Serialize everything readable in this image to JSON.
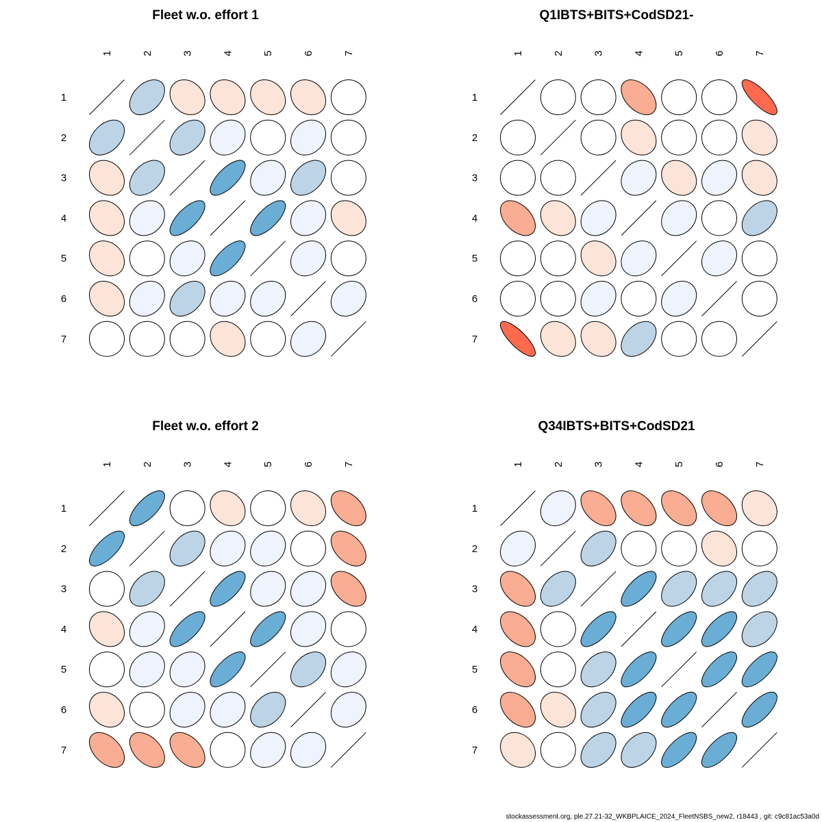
{
  "footer": "stockassessment.org, ple.27.21-32_WKBPLAICE_2024_FleetNSBS_new2, r18443 , git: c9c81ac53a0d",
  "palette": {
    "-1": "#ff6a4f",
    "-0.8": "#ff6a4f",
    "-0.6": "#f9ad92",
    "-0.4": "#f9ad92",
    "-0.2": "#fde4d9",
    "0": "#ffffff",
    "0.2": "#eef3fd",
    "0.4": "#bcd4e6",
    "0.6": "#6aaed6",
    "0.8": "#6aaed6",
    "1": "#2878b8"
  },
  "chart_data": [
    {
      "type": "correlation-ellipse",
      "title": "Fleet w.o. effort 1",
      "labels": [
        "1",
        "2",
        "3",
        "4",
        "5",
        "6",
        "7"
      ],
      "matrix": [
        [
          1,
          0.4,
          -0.2,
          -0.2,
          -0.2,
          -0.2,
          0
        ],
        [
          0.4,
          1,
          0.4,
          0.2,
          0,
          0.2,
          0
        ],
        [
          -0.2,
          0.4,
          1,
          0.7,
          0.2,
          0.4,
          0
        ],
        [
          -0.2,
          0.2,
          0.7,
          1,
          0.7,
          0.2,
          -0.2
        ],
        [
          -0.2,
          0,
          0.2,
          0.7,
          1,
          0.2,
          0
        ],
        [
          -0.2,
          0.2,
          0.4,
          0.2,
          0.2,
          1,
          0.2
        ],
        [
          0,
          0,
          0,
          -0.2,
          0,
          0.2,
          1
        ]
      ]
    },
    {
      "type": "correlation-ellipse",
      "title": "Q1IBTS+BITS+CodSD21-",
      "labels": [
        "1",
        "2",
        "3",
        "4",
        "5",
        "6",
        "7"
      ],
      "matrix": [
        [
          1,
          0,
          0,
          -0.45,
          0,
          0,
          -0.8
        ],
        [
          0,
          1,
          0,
          -0.2,
          0,
          0,
          -0.2
        ],
        [
          0,
          0,
          1,
          0.2,
          -0.2,
          0.2,
          -0.2
        ],
        [
          -0.45,
          -0.2,
          0.2,
          1,
          0.2,
          0,
          0.4
        ],
        [
          0,
          0,
          -0.2,
          0.2,
          1,
          0.2,
          0
        ],
        [
          0,
          0,
          0.2,
          0,
          0.2,
          1,
          0
        ],
        [
          -0.8,
          -0.2,
          -0.2,
          0.4,
          0,
          0,
          1
        ]
      ]
    },
    {
      "type": "correlation-ellipse",
      "title": "Fleet w.o. effort 2",
      "labels": [
        "1",
        "2",
        "3",
        "4",
        "5",
        "6",
        "7"
      ],
      "matrix": [
        [
          1,
          0.7,
          0,
          -0.2,
          0,
          -0.2,
          -0.45
        ],
        [
          0.7,
          1,
          0.4,
          0.2,
          0.2,
          0,
          -0.45
        ],
        [
          0,
          0.4,
          1,
          0.7,
          0.2,
          0.2,
          -0.45
        ],
        [
          -0.2,
          0.2,
          0.7,
          1,
          0.7,
          0.2,
          0
        ],
        [
          0,
          0.2,
          0.2,
          0.7,
          1,
          0.4,
          0.2
        ],
        [
          -0.2,
          0,
          0.2,
          0.2,
          0.4,
          1,
          0.2
        ],
        [
          -0.45,
          -0.45,
          -0.45,
          0,
          0.2,
          0.2,
          1
        ]
      ]
    },
    {
      "type": "correlation-ellipse",
      "title": "Q34IBTS+BITS+CodSD21",
      "labels": [
        "1",
        "2",
        "3",
        "4",
        "5",
        "6",
        "7"
      ],
      "matrix": [
        [
          1,
          0.2,
          -0.45,
          -0.45,
          -0.45,
          -0.45,
          -0.2
        ],
        [
          0.2,
          1,
          0.4,
          0,
          0,
          -0.2,
          0
        ],
        [
          -0.45,
          0.4,
          1,
          0.7,
          0.4,
          0.4,
          0.4
        ],
        [
          -0.45,
          0,
          0.7,
          1,
          0.7,
          0.7,
          0.4
        ],
        [
          -0.45,
          0,
          0.4,
          0.7,
          1,
          0.7,
          0.7
        ],
        [
          -0.45,
          -0.2,
          0.4,
          0.7,
          0.7,
          1,
          0.7
        ],
        [
          -0.2,
          0,
          0.4,
          0.4,
          0.7,
          0.7,
          1
        ]
      ]
    }
  ]
}
